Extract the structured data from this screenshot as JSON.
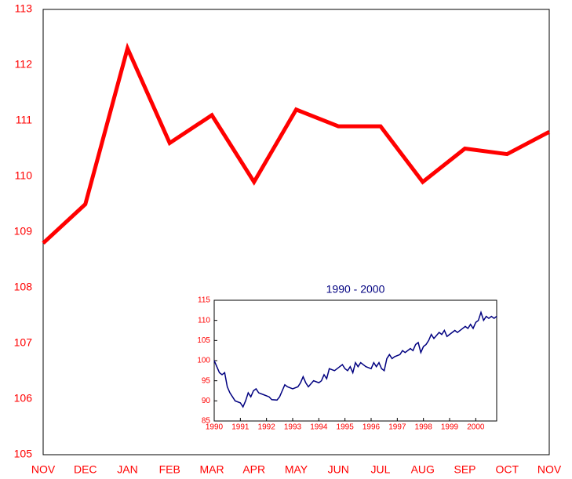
{
  "chart_data": [
    {
      "type": "line",
      "categories": [
        "NOV",
        "DEC",
        "JAN",
        "FEB",
        "MAR",
        "APR",
        "MAY",
        "JUN",
        "JUL",
        "AUG",
        "SEP",
        "OCT",
        "NOV"
      ],
      "values": [
        108.8,
        109.5,
        112.3,
        110.6,
        111.1,
        109.9,
        111.2,
        110.9,
        110.9,
        109.9,
        110.5,
        110.4,
        110.8
      ],
      "color": "#ff0000",
      "ylim": [
        105,
        113
      ],
      "yticks": [
        105,
        106,
        107,
        108,
        109,
        110,
        111,
        112,
        113
      ]
    },
    {
      "type": "line",
      "title": "1990 - 2000",
      "x": [
        1990.0,
        1990.1,
        1990.2,
        1990.3,
        1990.4,
        1990.5,
        1990.6,
        1990.7,
        1990.8,
        1991.0,
        1991.1,
        1991.2,
        1991.3,
        1991.4,
        1991.5,
        1991.6,
        1991.7,
        1991.9,
        1992.1,
        1992.2,
        1992.4,
        1992.5,
        1992.6,
        1992.7,
        1992.8,
        1993.0,
        1993.2,
        1993.3,
        1993.4,
        1993.5,
        1993.6,
        1993.8,
        1994.0,
        1994.1,
        1994.2,
        1994.3,
        1994.4,
        1994.6,
        1994.8,
        1994.9,
        1995.0,
        1995.1,
        1995.2,
        1995.3,
        1995.4,
        1995.5,
        1995.6,
        1995.8,
        1996.0,
        1996.1,
        1996.2,
        1996.3,
        1996.4,
        1996.5,
        1996.6,
        1996.7,
        1996.8,
        1996.9,
        1997.1,
        1997.2,
        1997.3,
        1997.5,
        1997.6,
        1997.7,
        1997.8,
        1997.9,
        1998.0,
        1998.1,
        1998.2,
        1998.3,
        1998.4,
        1998.6,
        1998.7,
        1998.8,
        1998.9,
        1999.0,
        1999.2,
        1999.3,
        1999.5,
        1999.6,
        1999.7,
        1999.8,
        1999.9,
        2000.0,
        2000.1,
        2000.2,
        2000.3,
        2000.4,
        2000.5,
        2000.6,
        2000.7,
        2000.8
      ],
      "values": [
        100,
        98.5,
        97,
        96.5,
        97,
        93.5,
        92,
        91,
        90,
        89.5,
        88.5,
        90,
        92,
        91,
        92.5,
        93,
        92,
        91.5,
        91,
        90.3,
        90.2,
        91,
        92.5,
        94,
        93.5,
        93,
        93.5,
        94.5,
        96,
        94.5,
        93.5,
        95,
        94.5,
        95,
        96.5,
        95.5,
        98,
        97.5,
        98.5,
        99,
        98,
        97.5,
        98.5,
        97,
        99.5,
        98.5,
        99.5,
        98.5,
        98,
        99.5,
        98.5,
        99.5,
        98,
        97.5,
        100.5,
        101.5,
        100.5,
        101,
        101.5,
        102.5,
        102,
        103,
        102.5,
        104,
        104.5,
        102,
        103.5,
        104,
        105,
        106.5,
        105.5,
        107,
        106.5,
        107.5,
        106,
        106.5,
        107.5,
        107,
        108,
        108.5,
        108,
        109,
        108,
        109.5,
        110,
        112,
        110,
        111,
        110.5,
        111,
        110.5,
        111
      ],
      "color": "#000080",
      "xlim": [
        1990,
        2000.8
      ],
      "xticks": [
        1990,
        1991,
        1992,
        1993,
        1994,
        1995,
        1996,
        1997,
        1998,
        1999,
        2000
      ],
      "ylim": [
        85,
        115
      ],
      "yticks": [
        85,
        90,
        95,
        100,
        105,
        110,
        115
      ]
    }
  ]
}
